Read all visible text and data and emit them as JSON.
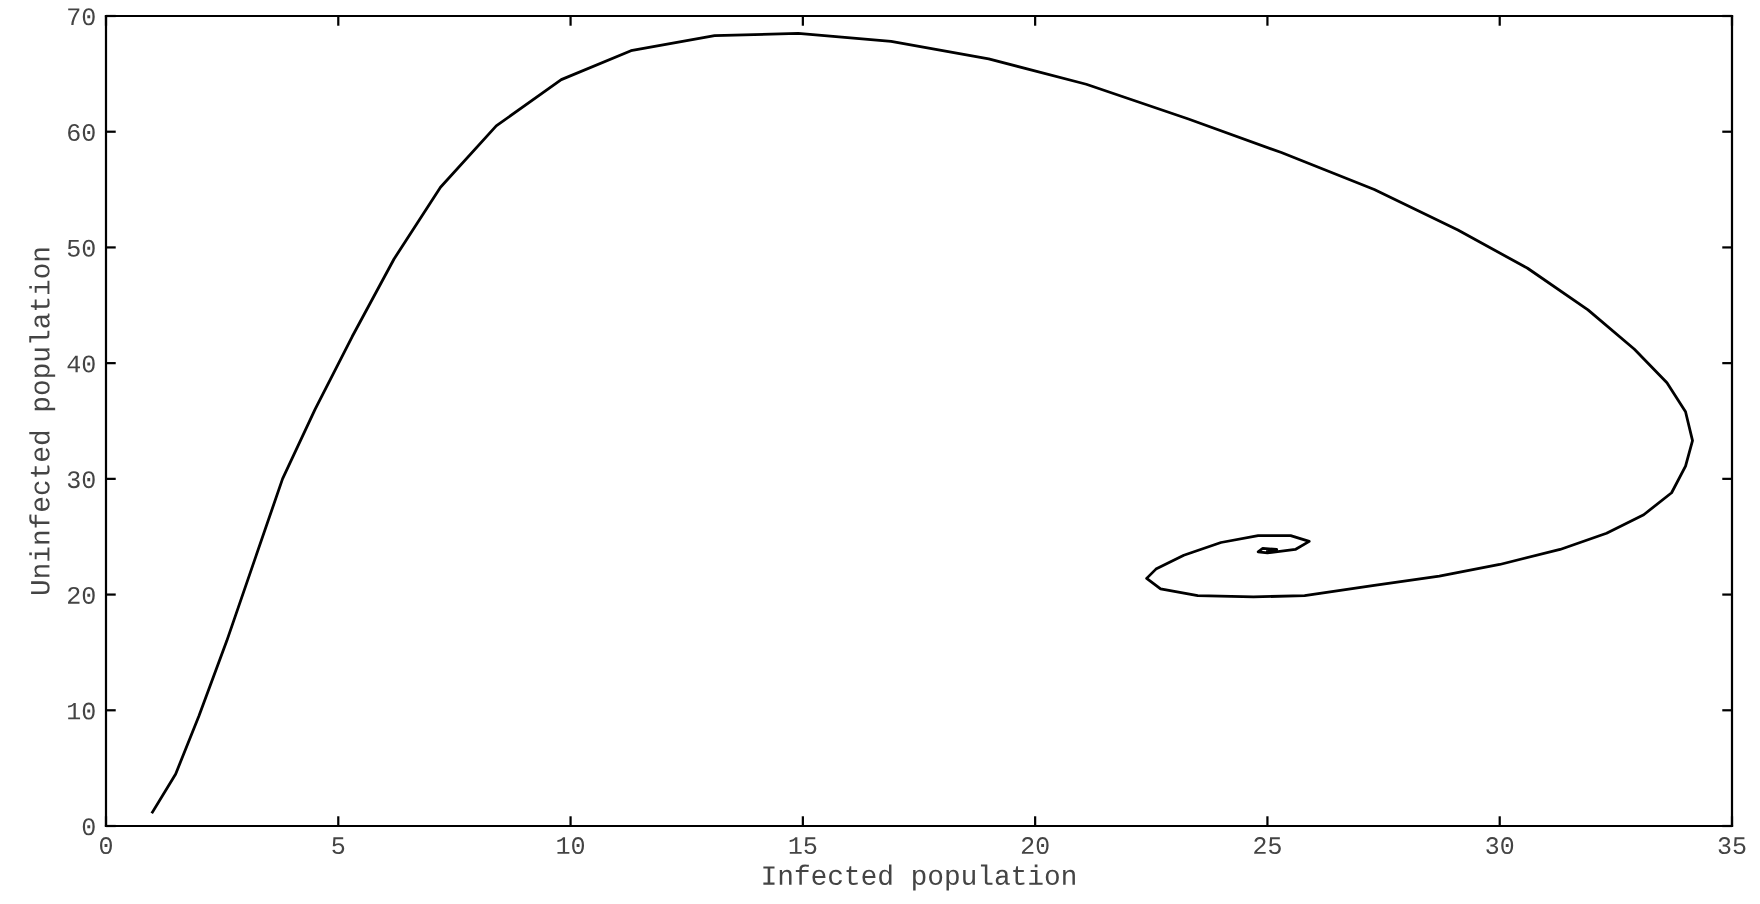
{
  "chart_data": {
    "type": "line",
    "xlabel": "Infected population",
    "ylabel": "Uninfected population",
    "xlim": [
      0,
      35
    ],
    "ylim": [
      0,
      70
    ],
    "xticks": [
      0,
      5,
      10,
      15,
      20,
      25,
      30,
      35
    ],
    "yticks": [
      0,
      10,
      20,
      30,
      40,
      50,
      60,
      70
    ],
    "grid": false,
    "marker": "none",
    "line_style": "solid",
    "series": [
      {
        "color": "#000000",
        "x": [
          1.0,
          1.5,
          2.0,
          2.6,
          3.2,
          3.8,
          4.5,
          5.3,
          6.2,
          7.2,
          8.4,
          9.8,
          11.3,
          13.1,
          14.9,
          16.9,
          19.0,
          21.1,
          23.3,
          25.3,
          27.3,
          29.1,
          30.6,
          31.9,
          32.9,
          33.6,
          34.0,
          34.15,
          34.0,
          33.7,
          33.1,
          32.3,
          31.3,
          30.0,
          28.7,
          27.3,
          25.8,
          24.7,
          23.5,
          22.7,
          22.4,
          22.6,
          23.2,
          24.0,
          24.8,
          25.5,
          25.9,
          25.6,
          25.0,
          24.8,
          24.9,
          25.2,
          25.05,
          25.0
        ],
        "values": [
          1.2,
          4.5,
          9.5,
          16.0,
          23.0,
          30.0,
          36.0,
          42.3,
          49.0,
          55.2,
          60.5,
          64.5,
          67.0,
          68.3,
          68.5,
          67.8,
          66.3,
          64.1,
          61.1,
          58.2,
          55.0,
          51.5,
          48.2,
          44.6,
          41.2,
          38.3,
          35.8,
          33.3,
          31.1,
          28.8,
          26.9,
          25.3,
          23.9,
          22.6,
          21.6,
          20.8,
          19.9,
          19.8,
          19.9,
          20.5,
          21.4,
          22.2,
          23.4,
          24.5,
          25.1,
          25.1,
          24.6,
          23.9,
          23.6,
          23.7,
          24.0,
          23.9,
          23.8,
          23.8
        ]
      }
    ]
  }
}
